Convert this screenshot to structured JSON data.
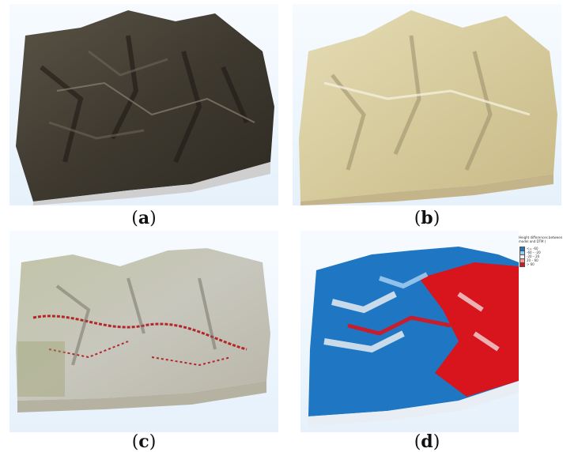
{
  "panels": [
    {
      "id": "a",
      "caption_label": "a",
      "color": "#4a4438"
    },
    {
      "id": "b",
      "caption_label": "b",
      "color": "#d9cfa4"
    },
    {
      "id": "c",
      "caption_label": "c",
      "color": "#c9c7b8"
    },
    {
      "id": "d",
      "caption_label": "d",
      "color": "#1f77c4"
    }
  ],
  "legend": {
    "title": "Height differences between model and DTM (",
    "items": [
      {
        "label": "<= -60",
        "color": "#1f77c4"
      },
      {
        "label": "-60 – -20",
        "color": "#9cc9ee"
      },
      {
        "label": "-20 – 20",
        "color": "#f4f4f4"
      },
      {
        "label": "20 – 60",
        "color": "#f29a9a"
      },
      {
        "label": "> 60",
        "color": "#d8141c"
      }
    ]
  }
}
